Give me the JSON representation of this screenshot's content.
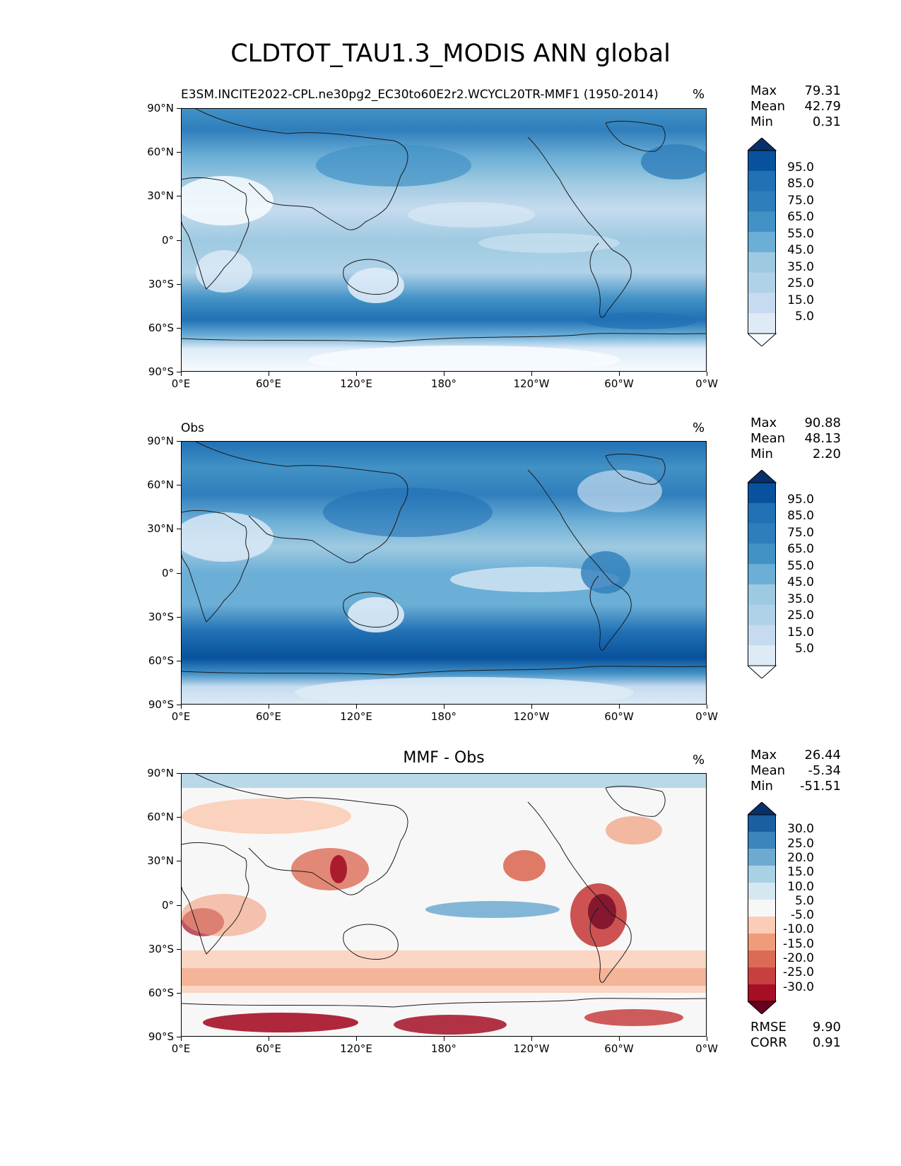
{
  "title": "CLDTOT_TAU1.3_MODIS ANN global",
  "axes": {
    "lat_labels": [
      "90°N",
      "60°N",
      "30°N",
      "0°",
      "30°S",
      "60°S",
      "90°S"
    ],
    "lon_labels": [
      "0°E",
      "60°E",
      "120°E",
      "180°",
      "120°W",
      "60°W",
      "0°W"
    ]
  },
  "colors": {
    "blues": [
      "#f7fbff",
      "#deebf7",
      "#c6dbef",
      "#b0d2e8",
      "#9ecae1",
      "#6baed6",
      "#4292c6",
      "#2f7ebc",
      "#2171b5",
      "#08519c",
      "#08306b"
    ],
    "rdbu": [
      "#67001f",
      "#a50f26",
      "#c7403f",
      "#dc6b56",
      "#f09c7b",
      "#fbcdb6",
      "#f7f7f7",
      "#d5e7f1",
      "#a9d1e5",
      "#6eaad0",
      "#3b84bc",
      "#1a5fa0",
      "#08306b"
    ]
  },
  "panels": [
    {
      "id": "model",
      "title": "E3SM.INCITE2022-CPL.ne30pg2_EC30to60E2r2.WCYCL20TR-MMF1 (1950-2014)",
      "units": "%",
      "stats": {
        "Max": "79.31",
        "Mean": "42.79",
        "Min": "0.31"
      },
      "colorbar_labels": [
        "95.0",
        "85.0",
        "75.0",
        "65.0",
        "55.0",
        "45.0",
        "35.0",
        "25.0",
        "15.0",
        "5.0"
      ]
    },
    {
      "id": "obs",
      "title": "Obs",
      "units": "%",
      "stats": {
        "Max": "90.88",
        "Mean": "48.13",
        "Min": "2.20"
      },
      "colorbar_labels": [
        "95.0",
        "85.0",
        "75.0",
        "65.0",
        "55.0",
        "45.0",
        "35.0",
        "25.0",
        "15.0",
        "5.0"
      ]
    },
    {
      "id": "diff",
      "title": "MMF - Obs",
      "units": "%",
      "stats": {
        "Max": "26.44",
        "Mean": "-5.34",
        "Min": "-51.51"
      },
      "colorbar_labels": [
        "30.0",
        "25.0",
        "20.0",
        "15.0",
        "10.0",
        "5.0",
        "-5.0",
        "-10.0",
        "-15.0",
        "-20.0",
        "-25.0",
        "-30.0"
      ],
      "metrics": {
        "RMSE": "9.90",
        "CORR": "0.91"
      }
    }
  ]
}
